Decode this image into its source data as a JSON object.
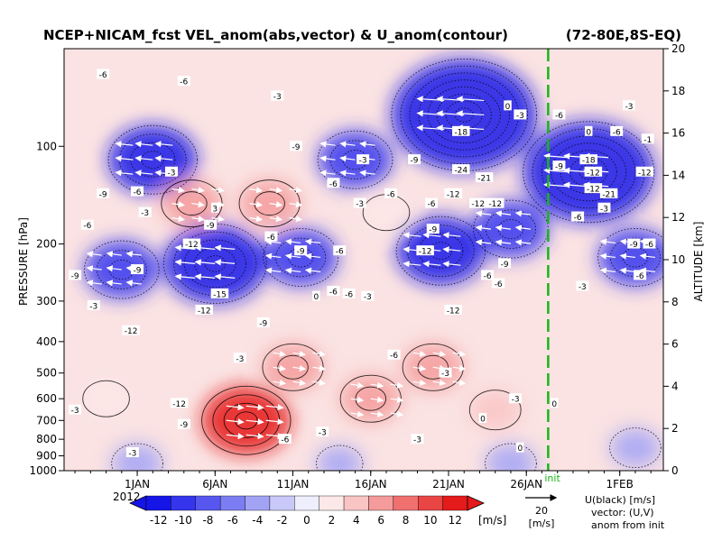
{
  "chart_data": {
    "type": "heatmap",
    "title": "NCEP+NICAM_fcst VEL_anom(abs,vector) & U_anom(contour)",
    "region": "(72-80E,8S-EQ)",
    "xlabel": "",
    "ylabel_left": "PRESSURE [hPa]",
    "ylabel_right": "ALTITUDE [km]",
    "x_tick_labels": [
      "1JAN",
      "6JAN",
      "11JAN",
      "16JAN",
      "21JAN",
      "26JAN",
      "1FEB"
    ],
    "x_year_label": "2012",
    "x_tick_days": [
      1,
      6,
      11,
      16,
      21,
      26,
      32
    ],
    "x_range_days": [
      -3.7,
      34.8
    ],
    "init_day": 27.4,
    "init_label": "init",
    "y_pressure_ticks": [
      100,
      200,
      300,
      400,
      500,
      600,
      700,
      800,
      900,
      1000
    ],
    "y_pressure_range": [
      1000,
      50
    ],
    "y_altitude_ticks": [
      0,
      2,
      4,
      6,
      8,
      10,
      12,
      14,
      16,
      18,
      20
    ],
    "y_altitude_range_km": [
      0,
      20
    ],
    "colorbar": {
      "ticks": [
        -12,
        -10,
        -8,
        -6,
        -4,
        -2,
        0,
        2,
        4,
        6,
        8,
        10,
        12
      ],
      "tick_labels": [
        "-12",
        "-10",
        "-8",
        "-6",
        "-4",
        "-2",
        "0",
        "2",
        "4",
        "6",
        "8",
        "10",
        "12"
      ],
      "unit": "[m/s]",
      "colors": [
        "#1515e8",
        "#3535ee",
        "#5757f0",
        "#7d7df3",
        "#a3a3f6",
        "#c9c9f9",
        "#eeeefd",
        "#fde8e8",
        "#f9c4c4",
        "#f59b9b",
        "#f07070",
        "#ea4545",
        "#e51a1a"
      ]
    },
    "vector_key": {
      "value": "20",
      "unit": "[m/s]"
    },
    "legend_text": [
      "U(black) [m/s]",
      "vector: (U,V)",
      "anom from init"
    ],
    "u_anomaly_field": {
      "description_source": "estimated",
      "blobs": [
        {
          "day": 6.0,
          "p": 230,
          "value": -15
        },
        {
          "day": 2.0,
          "p": 110,
          "value": -12
        },
        {
          "day": 0.0,
          "p": 240,
          "value": -9
        },
        {
          "day": 11.5,
          "p": 220,
          "value": -9
        },
        {
          "day": 15.0,
          "p": 110,
          "value": -9
        },
        {
          "day": 22.0,
          "p": 80,
          "value": -24
        },
        {
          "day": 20.5,
          "p": 210,
          "value": -12
        },
        {
          "day": 25.0,
          "p": 180,
          "value": -9
        },
        {
          "day": 30.0,
          "p": 120,
          "value": -21
        },
        {
          "day": 33.0,
          "p": 220,
          "value": -9
        },
        {
          "day": 4.5,
          "p": 150,
          "value": 6
        },
        {
          "day": 9.5,
          "p": 150,
          "value": 6
        },
        {
          "day": 17.0,
          "p": 160,
          "value": 3
        },
        {
          "day": 8.0,
          "p": 700,
          "value": 12
        },
        {
          "day": 11.0,
          "p": 480,
          "value": 6
        },
        {
          "day": 16.0,
          "p": 600,
          "value": 6
        },
        {
          "day": 20.0,
          "p": 480,
          "value": 6
        },
        {
          "day": 24.0,
          "p": 650,
          "value": 4
        },
        {
          "day": -1.0,
          "p": 600,
          "value": 3
        },
        {
          "day": 1.0,
          "p": 950,
          "value": -4
        },
        {
          "day": 14.0,
          "p": 950,
          "value": -3
        },
        {
          "day": 25.0,
          "p": 950,
          "value": -4
        },
        {
          "day": 33.0,
          "p": 850,
          "value": -4
        }
      ]
    },
    "contour_labels": [
      {
        "day": -1.2,
        "p": 60,
        "text": "-6"
      },
      {
        "day": 4.0,
        "p": 63,
        "text": "-6"
      },
      {
        "day": 10.0,
        "p": 70,
        "text": "-3"
      },
      {
        "day": 3.2,
        "p": 120,
        "text": "-3"
      },
      {
        "day": 1.0,
        "p": 138,
        "text": "-6"
      },
      {
        "day": -1.2,
        "p": 140,
        "text": "-9"
      },
      {
        "day": 11.2,
        "p": 100,
        "text": "-9"
      },
      {
        "day": 13.6,
        "p": 130,
        "text": "-6"
      },
      {
        "day": 15.5,
        "p": 110,
        "text": "-3"
      },
      {
        "day": 18.8,
        "p": 110,
        "text": "-9"
      },
      {
        "day": 21.8,
        "p": 90,
        "text": "-18"
      },
      {
        "day": 21.8,
        "p": 118,
        "text": "-24"
      },
      {
        "day": 23.3,
        "p": 125,
        "text": "-21"
      },
      {
        "day": 21.3,
        "p": 140,
        "text": "-12"
      },
      {
        "day": 22.9,
        "p": 150,
        "text": "-12"
      },
      {
        "day": 24.0,
        "p": 150,
        "text": "-12"
      },
      {
        "day": 19.9,
        "p": 150,
        "text": "-6"
      },
      {
        "day": 17.3,
        "p": 140,
        "text": "-6"
      },
      {
        "day": 25.6,
        "p": 80,
        "text": "-3"
      },
      {
        "day": 24.8,
        "p": 75,
        "text": "0"
      },
      {
        "day": 1.5,
        "p": 160,
        "text": "-3"
      },
      {
        "day": -2.2,
        "p": 175,
        "text": "-6"
      },
      {
        "day": 6.0,
        "p": 155,
        "text": "3"
      },
      {
        "day": 5.7,
        "p": 175,
        "text": "-9"
      },
      {
        "day": 4.5,
        "p": 200,
        "text": "-12"
      },
      {
        "day": 9.6,
        "p": 190,
        "text": "-6"
      },
      {
        "day": 11.5,
        "p": 210,
        "text": "-9"
      },
      {
        "day": 14.0,
        "p": 210,
        "text": "-6"
      },
      {
        "day": 15.3,
        "p": 150,
        "text": "-3"
      },
      {
        "day": 19.5,
        "p": 210,
        "text": "-12"
      },
      {
        "day": 20.0,
        "p": 180,
        "text": "-9"
      },
      {
        "day": 24.6,
        "p": 230,
        "text": "-9"
      },
      {
        "day": 23.5,
        "p": 250,
        "text": "-6"
      },
      {
        "day": 24.2,
        "p": 265,
        "text": "-6"
      },
      {
        "day": 1.0,
        "p": 240,
        "text": "-9"
      },
      {
        "day": -3.0,
        "p": 250,
        "text": "-9"
      },
      {
        "day": 6.3,
        "p": 285,
        "text": "-15"
      },
      {
        "day": 5.3,
        "p": 320,
        "text": "-12"
      },
      {
        "day": 12.5,
        "p": 290,
        "text": "0"
      },
      {
        "day": 13.6,
        "p": 280,
        "text": "-6"
      },
      {
        "day": 14.6,
        "p": 285,
        "text": "-6"
      },
      {
        "day": 15.8,
        "p": 290,
        "text": "-3"
      },
      {
        "day": 21.3,
        "p": 320,
        "text": "-12"
      },
      {
        "day": -1.8,
        "p": 310,
        "text": "-3"
      },
      {
        "day": 0.6,
        "p": 370,
        "text": "-12"
      },
      {
        "day": 9.1,
        "p": 350,
        "text": "-9"
      },
      {
        "day": 7.6,
        "p": 450,
        "text": "-3"
      },
      {
        "day": 17.5,
        "p": 440,
        "text": "-6"
      },
      {
        "day": 20.8,
        "p": 500,
        "text": "-3"
      },
      {
        "day": 3.7,
        "p": 620,
        "text": "-12"
      },
      {
        "day": 4.0,
        "p": 720,
        "text": "-9"
      },
      {
        "day": 10.5,
        "p": 800,
        "text": "-6"
      },
      {
        "day": 12.9,
        "p": 760,
        "text": "-3"
      },
      {
        "day": 19.0,
        "p": 800,
        "text": "-3"
      },
      {
        "day": 23.2,
        "p": 690,
        "text": "0"
      },
      {
        "day": 25.3,
        "p": 600,
        "text": "-3"
      },
      {
        "day": 0.7,
        "p": 880,
        "text": "-3"
      },
      {
        "day": -3.0,
        "p": 650,
        "text": "-3"
      },
      {
        "day": 25.6,
        "p": 850,
        "text": "0"
      },
      {
        "day": 27.8,
        "p": 620,
        "text": "0"
      },
      {
        "day": 28.1,
        "p": 80,
        "text": "-6"
      },
      {
        "day": 28.1,
        "p": 115,
        "text": "-9"
      },
      {
        "day": 30.0,
        "p": 110,
        "text": "-18"
      },
      {
        "day": 30.3,
        "p": 120,
        "text": "-12"
      },
      {
        "day": 30.3,
        "p": 135,
        "text": "-12"
      },
      {
        "day": 31.3,
        "p": 140,
        "text": "-21"
      },
      {
        "day": 29.3,
        "p": 165,
        "text": "-6"
      },
      {
        "day": 31.0,
        "p": 155,
        "text": "-3"
      },
      {
        "day": 31.8,
        "p": 90,
        "text": "-6"
      },
      {
        "day": 33.8,
        "p": 95,
        "text": "-1"
      },
      {
        "day": 33.6,
        "p": 120,
        "text": "-12"
      },
      {
        "day": 32.9,
        "p": 200,
        "text": "-9"
      },
      {
        "day": 33.9,
        "p": 200,
        "text": "-6"
      },
      {
        "day": 33.3,
        "p": 250,
        "text": "-6"
      },
      {
        "day": 29.6,
        "p": 270,
        "text": "-3"
      },
      {
        "day": 32.6,
        "p": 75,
        "text": "-3"
      },
      {
        "day": 30.0,
        "p": 90,
        "text": "0"
      }
    ]
  }
}
